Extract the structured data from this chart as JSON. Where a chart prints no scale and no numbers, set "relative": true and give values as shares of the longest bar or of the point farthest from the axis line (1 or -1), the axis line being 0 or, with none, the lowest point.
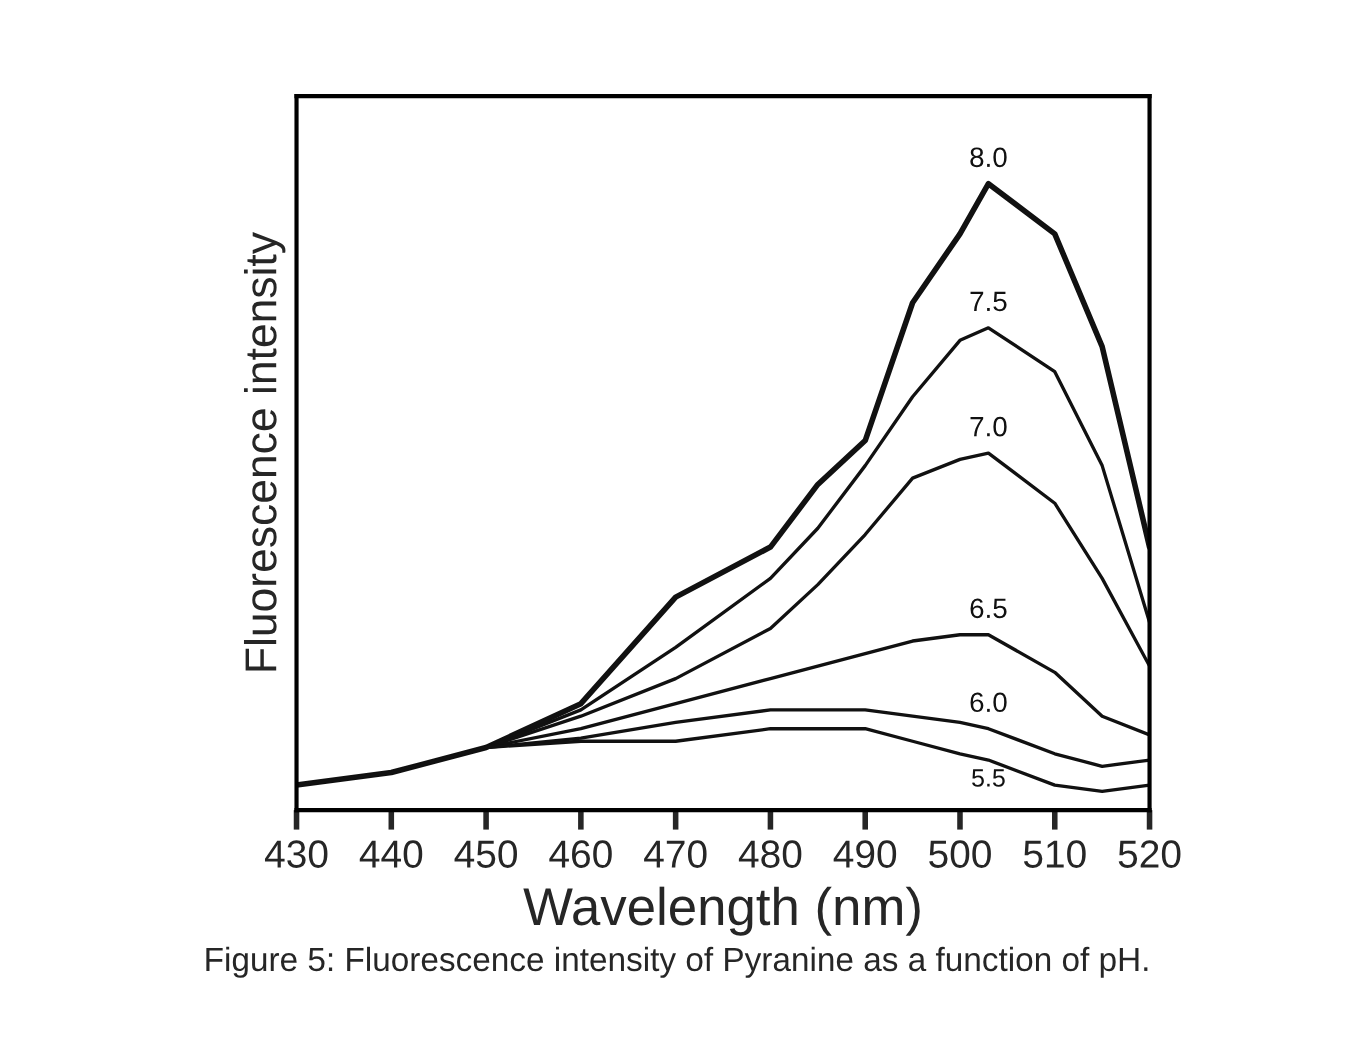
{
  "chart_data": {
    "type": "line",
    "relative": true,
    "xlabel": "Wavelength (nm)",
    "ylabel": "Fluorescence intensity",
    "xlim": [
      430,
      520
    ],
    "xticks": [
      430,
      440,
      450,
      460,
      470,
      480,
      490,
      500,
      510,
      520
    ],
    "grid": false,
    "legend": false,
    "annotations": [
      "Figure 5: Fluorescence intensity of Pyranine as a function of pH."
    ],
    "x": [
      430,
      440,
      450,
      460,
      470,
      480,
      485,
      490,
      495,
      500,
      503,
      510,
      515,
      520
    ],
    "series": [
      {
        "name": "8.0",
        "color": "#111111",
        "values": [
          0.04,
          0.06,
          0.1,
          0.17,
          0.34,
          0.42,
          0.52,
          0.59,
          0.81,
          0.92,
          1.0,
          0.92,
          0.74,
          0.42
        ]
      },
      {
        "name": "7.5",
        "color": "#111111",
        "values": [
          0.04,
          0.06,
          0.1,
          0.16,
          0.26,
          0.37,
          0.45,
          0.55,
          0.66,
          0.75,
          0.77,
          0.7,
          0.55,
          0.3
        ]
      },
      {
        "name": "7.0",
        "color": "#111111",
        "values": [
          0.04,
          0.06,
          0.1,
          0.15,
          0.21,
          0.29,
          0.36,
          0.44,
          0.53,
          0.56,
          0.57,
          0.49,
          0.37,
          0.23
        ]
      },
      {
        "name": "6.5",
        "color": "#111111",
        "values": [
          0.04,
          0.06,
          0.1,
          0.13,
          0.17,
          0.21,
          0.23,
          0.25,
          0.27,
          0.28,
          0.28,
          0.22,
          0.15,
          0.12
        ]
      },
      {
        "name": "6.0",
        "color": "#111111",
        "values": [
          0.04,
          0.06,
          0.1,
          0.115,
          0.14,
          0.16,
          0.16,
          0.16,
          0.15,
          0.14,
          0.13,
          0.09,
          0.07,
          0.08
        ]
      },
      {
        "name": "5.5",
        "color": "#111111",
        "values": [
          0.04,
          0.06,
          0.1,
          0.11,
          0.11,
          0.13,
          0.13,
          0.13,
          0.11,
          0.09,
          0.08,
          0.04,
          0.03,
          0.04
        ]
      }
    ]
  }
}
